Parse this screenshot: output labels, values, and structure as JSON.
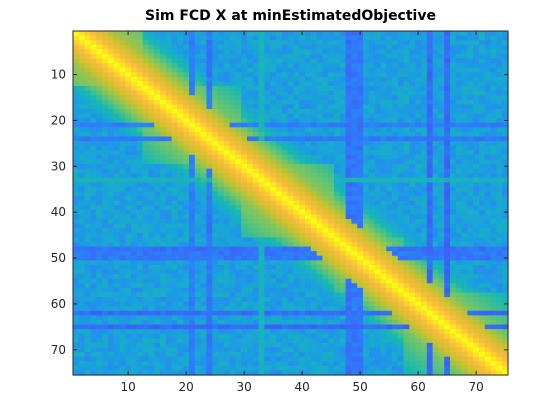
{
  "chart_data": {
    "type": "heatmap",
    "title": "Sim FCD X at minEstimatedObjective",
    "xlabel": "",
    "ylabel": "",
    "n": 75,
    "xlim": [
      0.5,
      75.5
    ],
    "ylim": [
      0.5,
      75.5
    ],
    "x_ticks": [
      "10",
      "20",
      "30",
      "40",
      "50",
      "60",
      "70"
    ],
    "y_ticks": [
      "10",
      "20",
      "30",
      "40",
      "50",
      "60",
      "70"
    ],
    "x_tick_values": [
      10,
      20,
      30,
      40,
      50,
      60,
      70
    ],
    "y_tick_values": [
      10,
      20,
      30,
      40,
      50,
      60,
      70
    ],
    "colormap": "parula",
    "colormap_stops": [
      "#3e26a8",
      "#4354f3",
      "#2f7cfa",
      "#1aa0e0",
      "#18b9b0",
      "#6cc56c",
      "#c9c22e",
      "#fbbb3c",
      "#f9fb15"
    ],
    "blocks": [
      {
        "start": 1,
        "end": 12,
        "value": 0.82
      },
      {
        "start": 12,
        "end": 29,
        "value": 0.78
      },
      {
        "start": 30,
        "end": 45,
        "value": 0.8
      },
      {
        "start": 45,
        "end": 57,
        "value": 0.76
      },
      {
        "start": 57,
        "end": 75,
        "value": 0.78
      }
    ],
    "diagonal_value": 1.0,
    "background_value": 0.38,
    "low_bands": [
      {
        "row": 48,
        "value": 0.18
      },
      {
        "row": 50,
        "value": 0.2
      },
      {
        "row": 62,
        "value": 0.16
      },
      {
        "row": 65,
        "value": 0.15
      },
      {
        "row": 21,
        "value": 0.22
      },
      {
        "row": 24,
        "value": 0.2
      },
      {
        "row": 49,
        "value": 0.2
      }
    ],
    "bright_band": {
      "row": 33,
      "value": 0.5
    }
  }
}
